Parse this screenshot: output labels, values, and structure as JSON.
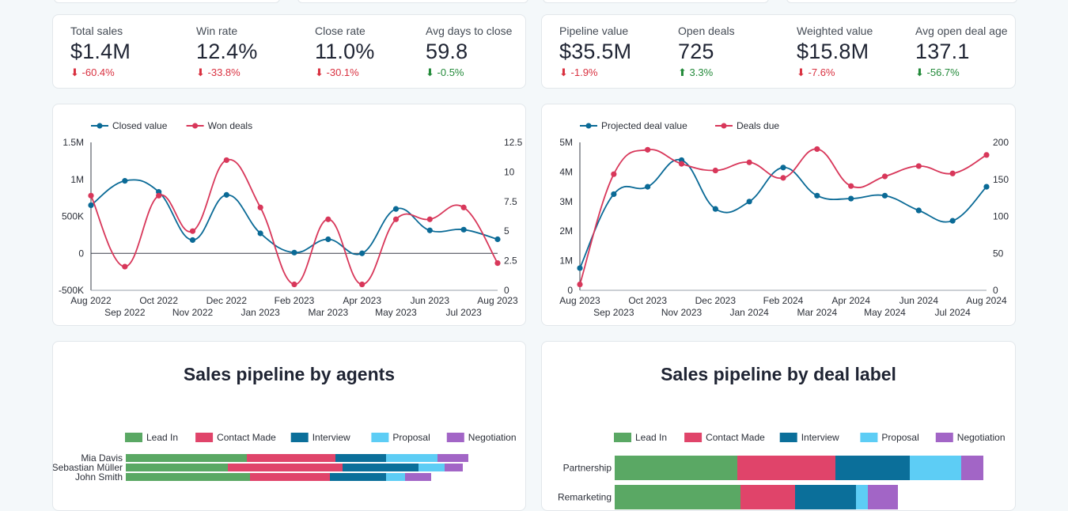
{
  "colors": {
    "blue": "#0a6a96",
    "red": "#d8375a",
    "lead_in": "#5aa864",
    "contact_made": "#e0446a",
    "interview": "#0b6f9a",
    "proposal": "#5dcdf5",
    "negotiation": "#a265c6",
    "negative": "#d93140",
    "positive": "#238a3a"
  },
  "kpis_left": [
    {
      "label": "Total sales",
      "value": "$1.4M",
      "delta": "-60.4%",
      "direction": "down",
      "icon": "arrow-down-icon"
    },
    {
      "label": "Win rate",
      "value": "12.4%",
      "delta": "-33.8%",
      "direction": "down",
      "icon": "arrow-down-icon"
    },
    {
      "label": "Close rate",
      "value": "11.0%",
      "delta": "-30.1%",
      "direction": "down",
      "icon": "arrow-down-icon"
    },
    {
      "label": "Avg days to close",
      "value": "59.8",
      "delta": "-0.5%",
      "direction": "good",
      "icon": "arrow-down-icon"
    }
  ],
  "kpis_right": [
    {
      "label": "Pipeline value",
      "value": "$35.5M",
      "delta": "-1.9%",
      "direction": "down",
      "icon": "arrow-down-icon"
    },
    {
      "label": "Open deals",
      "value": "725",
      "delta": "3.3%",
      "direction": "up",
      "icon": "arrow-up-icon"
    },
    {
      "label": "Weighted value",
      "value": "$15.8M",
      "delta": "-7.6%",
      "direction": "down",
      "icon": "arrow-down-icon"
    },
    {
      "label": "Avg open deal age",
      "value": "137.1",
      "delta": "-56.7%",
      "direction": "good",
      "icon": "arrow-down-icon"
    }
  ],
  "chart_data": [
    {
      "type": "line",
      "title": "",
      "categories": [
        "Aug 2022",
        "Sep 2022",
        "Oct 2022",
        "Nov 2022",
        "Dec 2022",
        "Jan 2023",
        "Feb 2023",
        "Mar 2023",
        "Apr 2023",
        "May 2023",
        "Jun 2023",
        "Jul 2023",
        "Aug 2023"
      ],
      "series": [
        {
          "name": "Closed value",
          "axis": "left",
          "values": [
            650000,
            980000,
            830000,
            180000,
            790000,
            270000,
            10000,
            190000,
            0,
            600000,
            310000,
            320000,
            190000
          ]
        },
        {
          "name": "Won deals",
          "axis": "right",
          "values": [
            8,
            2,
            8,
            5,
            11,
            7,
            0.5,
            6,
            0.5,
            6,
            6,
            7,
            2.3
          ]
        }
      ],
      "left_axis": {
        "min": -500000,
        "max": 1500000,
        "ticks": [
          -500000,
          0,
          500000,
          1000000,
          1500000
        ],
        "tick_labels": [
          "-500K",
          "0",
          "500K",
          "1M",
          "1.5M"
        ]
      },
      "right_axis": {
        "min": 0,
        "max": 12.5,
        "ticks": [
          0,
          2.5,
          5,
          7.5,
          10,
          12.5
        ],
        "tick_labels": [
          "0",
          "2.5",
          "5",
          "7.5",
          "10",
          "12.5"
        ]
      },
      "legend_position": "top-left"
    },
    {
      "type": "line",
      "title": "",
      "categories": [
        "Aug 2023",
        "Sep 2023",
        "Oct 2023",
        "Nov 2023",
        "Dec 2023",
        "Jan 2024",
        "Feb 2024",
        "Mar 2024",
        "Apr 2024",
        "May 2024",
        "Jun 2024",
        "Jul 2024",
        "Aug 2024"
      ],
      "series": [
        {
          "name": "Projected deal value",
          "axis": "left",
          "values": [
            750000,
            3250000,
            3500000,
            4400000,
            2750000,
            3000000,
            4150000,
            3200000,
            3100000,
            3200000,
            2700000,
            2350000,
            3500000
          ]
        },
        {
          "name": "Deals due",
          "axis": "right",
          "values": [
            8,
            157,
            190,
            171,
            162,
            173,
            152,
            191,
            141,
            154,
            168,
            158,
            183
          ]
        }
      ],
      "left_axis": {
        "min": 0,
        "max": 5000000,
        "ticks": [
          0,
          1000000,
          2000000,
          3000000,
          4000000,
          5000000
        ],
        "tick_labels": [
          "0",
          "1M",
          "2M",
          "3M",
          "4M",
          "5M"
        ]
      },
      "right_axis": {
        "min": 0,
        "max": 200,
        "ticks": [
          0,
          50,
          100,
          150,
          200
        ],
        "tick_labels": [
          "0",
          "50",
          "100",
          "150",
          "200"
        ]
      },
      "legend_position": "top-left"
    },
    {
      "type": "bar",
      "orientation": "horizontal",
      "stacked": true,
      "title": "Sales pipeline by agents",
      "categories": [
        "Mia Davis",
        "Sebastian Müller",
        "John Smith"
      ],
      "series": [
        {
          "name": "Lead In",
          "values": [
            153,
            129,
            157
          ]
        },
        {
          "name": "Contact Made",
          "values": [
            112,
            145,
            101
          ]
        },
        {
          "name": "Interview",
          "values": [
            64,
            96,
            71
          ]
        },
        {
          "name": "Proposal",
          "values": [
            65,
            33,
            24
          ]
        },
        {
          "name": "Negotiation",
          "values": [
            39,
            23,
            33
          ]
        }
      ],
      "x_max": 490,
      "legend_position": "top"
    },
    {
      "type": "bar",
      "orientation": "horizontal",
      "stacked": true,
      "title": "Sales pipeline by deal label",
      "categories": [
        "Partnership",
        "Remarketing"
      ],
      "series": [
        {
          "name": "Lead In",
          "values": [
            155,
            159
          ]
        },
        {
          "name": "Contact Made",
          "values": [
            124,
            69
          ]
        },
        {
          "name": "Interview",
          "values": [
            94,
            77
          ]
        },
        {
          "name": "Proposal",
          "values": [
            65,
            15
          ]
        },
        {
          "name": "Negotiation",
          "values": [
            28,
            38
          ]
        }
      ],
      "x_max": 490,
      "legend_position": "top"
    }
  ]
}
